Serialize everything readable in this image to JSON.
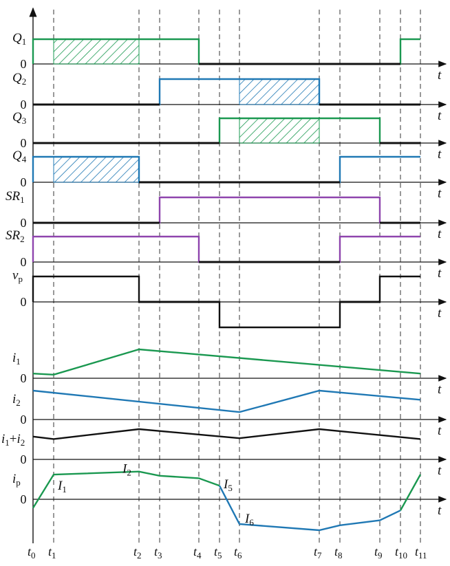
{
  "colors": {
    "green": "#1a9850",
    "blue": "#1f78b4",
    "purple": "#8e44ad",
    "black": "#111111",
    "dash": "#333333"
  },
  "time_labels": [
    {
      "base": "t",
      "sub": "0"
    },
    {
      "base": "t",
      "sub": "1"
    },
    {
      "base": "t",
      "sub": "2"
    },
    {
      "base": "t",
      "sub": "3"
    },
    {
      "base": "t",
      "sub": "4"
    },
    {
      "base": "t",
      "sub": "5"
    },
    {
      "base": "t",
      "sub": "6"
    },
    {
      "base": "t",
      "sub": "7"
    },
    {
      "base": "t",
      "sub": "8"
    },
    {
      "base": "t",
      "sub": "9"
    },
    {
      "base": "t",
      "sub": "10"
    },
    {
      "base": "t",
      "sub": "11"
    }
  ],
  "axis_t_label": "t",
  "zero_label": "0",
  "rows": [
    {
      "id": "q1",
      "label": {
        "base": "Q",
        "sub": "1"
      },
      "color": "green",
      "kind": "logic",
      "levels": [
        [
          0,
          1
        ],
        [
          4,
          0
        ],
        [
          10,
          1
        ],
        [
          11,
          1
        ]
      ],
      "hatch": [
        1,
        2
      ]
    },
    {
      "id": "q2",
      "label": {
        "base": "Q",
        "sub": "2"
      },
      "color": "blue",
      "kind": "logic",
      "levels": [
        [
          0,
          0
        ],
        [
          3,
          1
        ],
        [
          7,
          0
        ],
        [
          11,
          0
        ]
      ],
      "hatch": [
        6,
        7
      ]
    },
    {
      "id": "q3",
      "label": {
        "base": "Q",
        "sub": "3"
      },
      "color": "green",
      "kind": "logic",
      "levels": [
        [
          0,
          0
        ],
        [
          5,
          1
        ],
        [
          9,
          0
        ],
        [
          11,
          0
        ]
      ],
      "hatch": [
        6,
        7
      ]
    },
    {
      "id": "q4",
      "label": {
        "base": "Q",
        "sub": "4"
      },
      "color": "blue",
      "kind": "logic",
      "levels": [
        [
          0,
          1
        ],
        [
          2,
          0
        ],
        [
          8,
          1
        ],
        [
          11,
          1
        ]
      ],
      "hatch": [
        1,
        2
      ]
    },
    {
      "id": "sr1",
      "label": {
        "base": "SR",
        "sub": "1"
      },
      "color": "purple",
      "kind": "logic",
      "levels": [
        [
          0,
          0
        ],
        [
          3,
          1
        ],
        [
          9,
          0
        ],
        [
          11,
          0
        ]
      ]
    },
    {
      "id": "sr2",
      "label": {
        "base": "SR",
        "sub": "2"
      },
      "color": "purple",
      "kind": "logic",
      "levels": [
        [
          0,
          1
        ],
        [
          4,
          0
        ],
        [
          8,
          1
        ],
        [
          11,
          1
        ]
      ]
    },
    {
      "id": "vp",
      "label": {
        "base": "v",
        "sub": "p"
      },
      "color": "black",
      "kind": "tri",
      "levels": [
        [
          0,
          1
        ],
        [
          2,
          0
        ],
        [
          5,
          -1
        ],
        [
          8,
          0
        ],
        [
          9,
          1
        ],
        [
          11,
          1
        ]
      ]
    },
    {
      "id": "i1",
      "label": {
        "base": "i",
        "sub": "1"
      },
      "color": "green",
      "kind": "analog",
      "points": [
        [
          0,
          0.12
        ],
        [
          1,
          0.08
        ],
        [
          2,
          1.0
        ],
        [
          11,
          0.12
        ]
      ]
    },
    {
      "id": "i2",
      "label": {
        "base": "i",
        "sub": "2"
      },
      "color": "blue",
      "kind": "analog",
      "points": [
        [
          0,
          1.0
        ],
        [
          6,
          0.18
        ],
        [
          7,
          1.0
        ],
        [
          11,
          0.65
        ]
      ]
    },
    {
      "id": "isum",
      "label": {
        "base": "i",
        "sub": "1",
        "plus": "+",
        "base2": "i",
        "sub2": "2"
      },
      "color": "black",
      "kind": "analog",
      "points": [
        [
          0,
          0.55
        ],
        [
          1,
          0.4
        ],
        [
          2,
          1.0
        ],
        [
          6,
          0.45
        ],
        [
          7,
          1.0
        ],
        [
          11,
          0.4
        ]
      ]
    },
    {
      "id": "ip",
      "label": {
        "base": "i",
        "sub": "p"
      },
      "color": "mixed",
      "kind": "ip",
      "green_points": [
        [
          0,
          -0.35
        ],
        [
          1,
          1.0
        ],
        [
          2,
          1.12
        ],
        [
          3,
          0.95
        ],
        [
          4,
          0.85
        ],
        [
          5,
          0.55
        ]
      ],
      "blue_points": [
        [
          5,
          0.55
        ],
        [
          6,
          -1.0
        ],
        [
          7,
          -1.25
        ],
        [
          8,
          -1.05
        ],
        [
          9,
          -0.85
        ],
        [
          10,
          -0.45
        ]
      ],
      "green_points2": [
        [
          10,
          -0.45
        ],
        [
          11,
          1.0
        ]
      ],
      "annotations": [
        {
          "base": "I",
          "sub": "1",
          "at": 1
        },
        {
          "base": "I",
          "sub": "2",
          "at": 2
        },
        {
          "base": "I",
          "sub": "5",
          "at": 5
        },
        {
          "base": "I",
          "sub": "6",
          "at": 6
        }
      ]
    }
  ]
}
